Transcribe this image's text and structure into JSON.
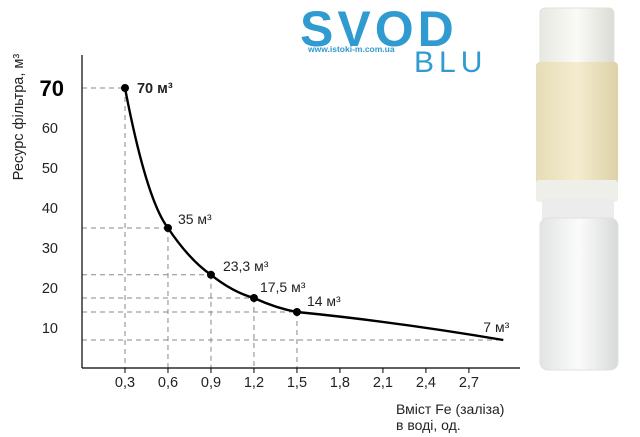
{
  "brand": {
    "name": "SVOD",
    "website": "www.istoki-m.com.ua",
    "subname": "BLU",
    "color": "#2f9bd0"
  },
  "chart_data": {
    "type": "line",
    "ylabel": "Ресурс фільтра, м³",
    "xlabel_line1": "Вміст Fe (заліза)",
    "xlabel_line2": "в воді, од.",
    "x_ticks": [
      "0,3",
      "0,6",
      "0,9",
      "1,2",
      "1,5",
      "1,8",
      "2,1",
      "2,4",
      "2,7"
    ],
    "y_ticks": [
      "10",
      "20",
      "30",
      "40",
      "50",
      "60"
    ],
    "y_tick_emphasis": "70",
    "xlim": [
      0.0,
      3.0
    ],
    "ylim": [
      0,
      72
    ],
    "series": [
      {
        "points": [
          {
            "x": 0.3,
            "y": 70
          },
          {
            "x": 0.6,
            "y": 35
          },
          {
            "x": 0.9,
            "y": 23.3
          },
          {
            "x": 1.2,
            "y": 17.5
          },
          {
            "x": 1.5,
            "y": 14
          },
          {
            "x": 2.94,
            "y": 7
          }
        ]
      }
    ],
    "marked_points": [
      {
        "x": 0.3,
        "y": 70,
        "label": "70 м³",
        "bold": true
      },
      {
        "x": 0.6,
        "y": 35,
        "label": "35 м³",
        "bold": false
      },
      {
        "x": 0.9,
        "y": 23.3,
        "label": "23,3 м³",
        "bold": false
      },
      {
        "x": 1.2,
        "y": 17.5,
        "label": "17,5 м³",
        "bold": false
      },
      {
        "x": 1.5,
        "y": 14,
        "label": "14 м³",
        "bold": false
      }
    ],
    "end_label": {
      "x": 2.94,
      "y": 7,
      "label": "7 м³"
    },
    "grid": "dashed guide lines to marked points",
    "line_color": "#000000",
    "guide_color": "#888888"
  }
}
